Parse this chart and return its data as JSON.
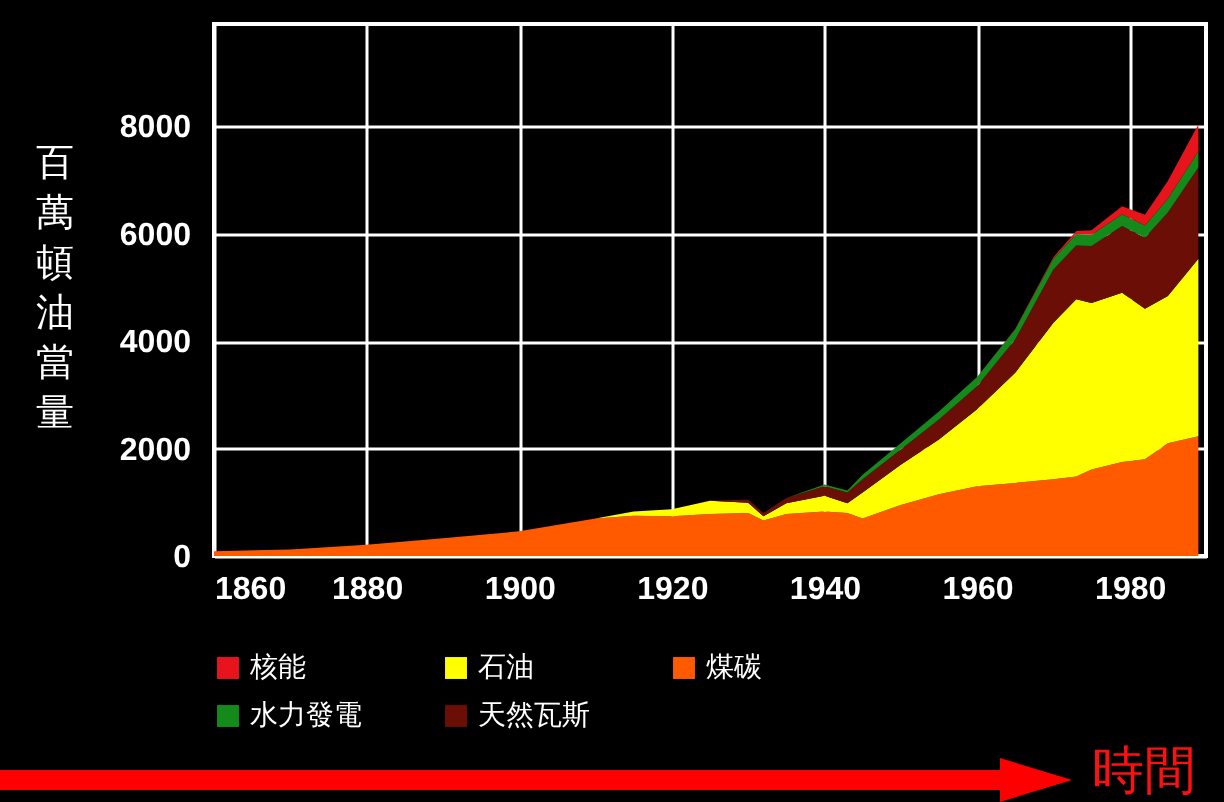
{
  "chart_data": {
    "type": "area",
    "stacked": true,
    "xlabel": "時間",
    "ylabel": "百萬頓油當量",
    "x": [
      1860,
      1870,
      1880,
      1890,
      1900,
      1910,
      1915,
      1920,
      1925,
      1930,
      1932,
      1935,
      1940,
      1943,
      1945,
      1950,
      1955,
      1960,
      1965,
      1970,
      1973,
      1975,
      1979,
      1982,
      1985,
      1989
    ],
    "series": [
      {
        "name": "煤碳",
        "color": "#ff5a00",
        "values": [
          90,
          120,
          210,
          330,
          460,
          700,
          750,
          740,
          780,
          800,
          660,
          780,
          830,
          800,
          700,
          950,
          1150,
          1300,
          1360,
          1430,
          1480,
          1610,
          1750,
          1800,
          2100,
          2230
        ]
      },
      {
        "name": "石油",
        "color": "#ffff00",
        "values": [
          0,
          0,
          0,
          0,
          0,
          0,
          80,
          130,
          250,
          190,
          80,
          200,
          290,
          180,
          480,
          750,
          1020,
          1430,
          2050,
          2910,
          3300,
          3100,
          3150,
          2800,
          2740,
          3300
        ]
      },
      {
        "name": "天然瓦斯",
        "color": "#6b0e06",
        "values": [
          0,
          0,
          0,
          0,
          0,
          0,
          0,
          0,
          0,
          60,
          60,
          100,
          180,
          200,
          250,
          280,
          370,
          430,
          620,
          990,
          1000,
          1060,
          1240,
          1320,
          1550,
          1700
        ]
      },
      {
        "name": "水力發電",
        "color": "#138a1a",
        "values": [
          0,
          0,
          0,
          0,
          0,
          0,
          0,
          0,
          0,
          0,
          0,
          0,
          30,
          40,
          80,
          120,
          150,
          170,
          190,
          200,
          210,
          210,
          220,
          230,
          260,
          300
        ]
      },
      {
        "name": "核能",
        "color": "#e8141c",
        "values": [
          0,
          0,
          0,
          0,
          0,
          0,
          0,
          0,
          0,
          0,
          0,
          0,
          0,
          0,
          0,
          0,
          0,
          0,
          10,
          30,
          60,
          80,
          150,
          200,
          330,
          500
        ]
      }
    ],
    "xlim": [
      1860,
      1990
    ],
    "xticks": [
      1860,
      1880,
      1900,
      1920,
      1940,
      1960,
      1980
    ],
    "ylim": [
      0,
      9900
    ],
    "yticks": [
      0,
      2000,
      4000,
      6000,
      8000
    ],
    "grid": true,
    "legend": "bottom"
  }
}
